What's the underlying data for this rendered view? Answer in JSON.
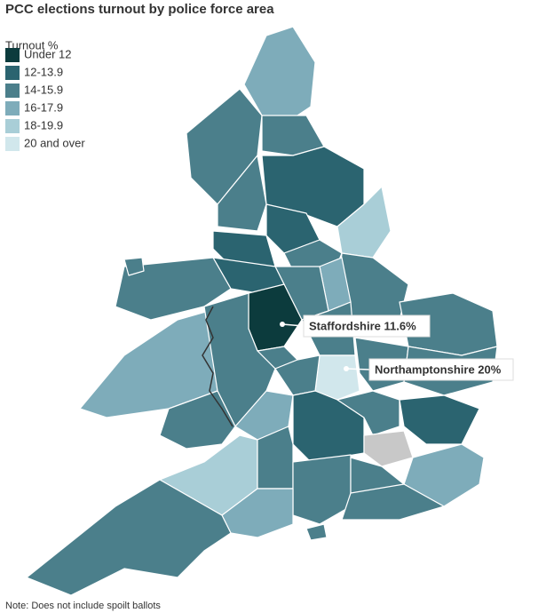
{
  "title": "PCC elections turnout by police force area",
  "legend": {
    "title": "Turnout %",
    "items": [
      {
        "label": "Under 12",
        "color": "#0c3b3d"
      },
      {
        "label": "12-13.9",
        "color": "#2b6470"
      },
      {
        "label": "14-15.9",
        "color": "#4b7f8b"
      },
      {
        "label": "16-17.9",
        "color": "#7eacba"
      },
      {
        "label": "18-19.9",
        "color": "#a9ced7"
      },
      {
        "label": "20 and over",
        "color": "#d1e7ec"
      }
    ]
  },
  "annotations": [
    "Staffordshire 11.6%",
    "Northamptonshire 20%"
  ],
  "note": "Note: Does not include spoilt ballots"
}
